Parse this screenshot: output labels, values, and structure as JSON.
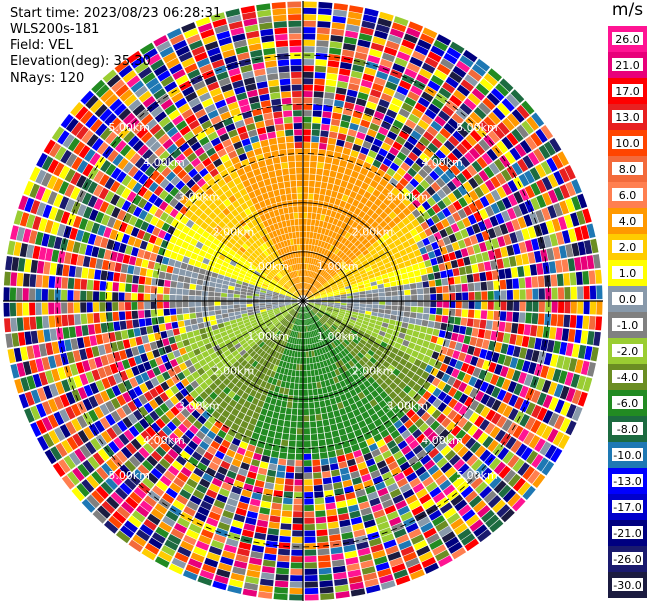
{
  "header": {
    "start_time": "Start time: 2023/08/23 06:28:31",
    "instrument": "WLS200s-181",
    "field": "Field: VEL",
    "elevation": "Elevation(deg): 35.30",
    "nrays": "NRays: 120"
  },
  "chart_data": {
    "type": "heatmap",
    "projection": "polar-ppi",
    "field": "VEL",
    "n_rays": 120,
    "range_rings_km": [
      1.0,
      2.0,
      3.0,
      4.0,
      5.0
    ],
    "ring_labels": [
      "1.00km",
      "2.00km",
      "3.00km",
      "4.00km",
      "5.00km"
    ],
    "max_range_km": 6.1,
    "valid_range_km": 3.0,
    "colorbar": {
      "unit": "m/s",
      "ticks": [
        "26.0",
        "21.0",
        "17.0",
        "13.0",
        "10.0",
        "8.0",
        "6.0",
        "4.0",
        "2.0",
        "1.0",
        "0.0",
        "-1.0",
        "-2.0",
        "-4.0",
        "-6.0",
        "-8.0",
        "-10.0",
        "-13.0",
        "-17.0",
        "-21.0",
        "-26.0",
        "-30.0"
      ],
      "colors": [
        "#ff1493",
        "#e8007a",
        "#ff0000",
        "#e82020",
        "#ff4500",
        "#f36a3b",
        "#ff7f50",
        "#ff9900",
        "#ffcc00",
        "#ffff00",
        "#8899aa",
        "#808080",
        "#9acd32",
        "#6b8e23",
        "#228b22",
        "#1c6b40",
        "#1e78b4",
        "#0000ff",
        "#0000cc",
        "#000080",
        "#1a1a6e",
        "#1b1b40"
      ]
    }
  }
}
